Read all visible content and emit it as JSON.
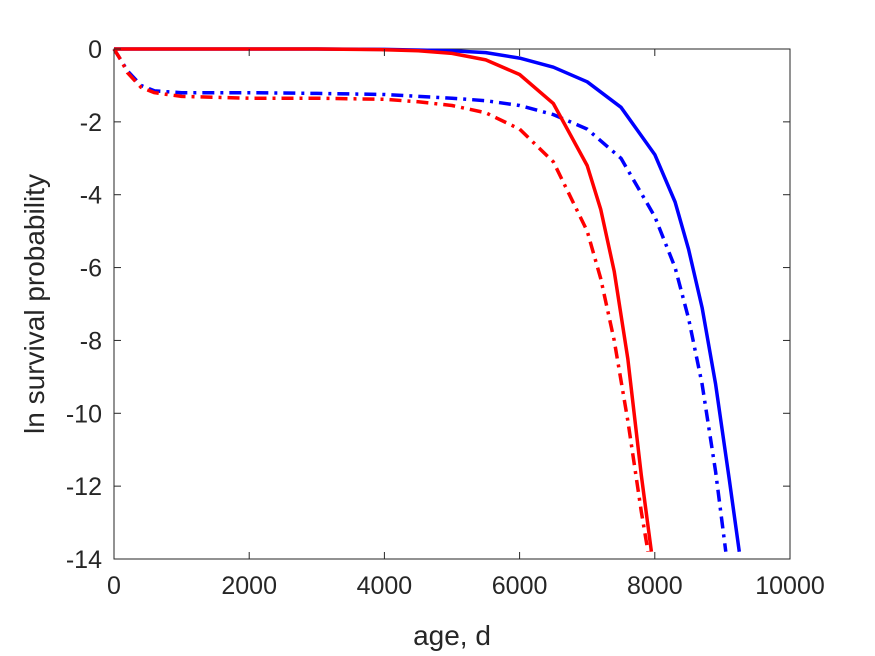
{
  "chart_data": {
    "type": "line",
    "title": "",
    "xlabel": "age, d",
    "ylabel": "ln survival probability",
    "xlim": [
      0,
      10000
    ],
    "ylim": [
      -14,
      0
    ],
    "xticks": [
      0,
      2000,
      4000,
      6000,
      8000,
      10000
    ],
    "yticks": [
      0,
      -2,
      -4,
      -6,
      -8,
      -10,
      -12,
      -14
    ],
    "xtick_labels": [
      "0",
      "2000",
      "4000",
      "6000",
      "8000",
      "10000"
    ],
    "ytick_labels": [
      "0",
      "-2",
      "-4",
      "-6",
      "-8",
      "-10",
      "-12",
      "-14"
    ],
    "grid": false,
    "legend": "none",
    "series": [
      {
        "color": "#0000ff",
        "style": "solid",
        "x": [
          0,
          1000,
          2000,
          3000,
          4000,
          5000,
          5500,
          6000,
          6500,
          7000,
          7500,
          8000,
          8300,
          8500,
          8700,
          8900,
          9100,
          9250
        ],
        "y": [
          0,
          0,
          0,
          0,
          -0.01,
          -0.05,
          -0.1,
          -0.25,
          -0.5,
          -0.9,
          -1.6,
          -2.9,
          -4.2,
          -5.5,
          -7.1,
          -9.2,
          -11.8,
          -13.8
        ]
      },
      {
        "color": "#0000ff",
        "style": "dashdot",
        "x": [
          0,
          100,
          200,
          400,
          600,
          1000,
          2000,
          3000,
          4000,
          5000,
          5500,
          6000,
          6500,
          7000,
          7500,
          8000,
          8300,
          8500,
          8700,
          8900,
          9050
        ],
        "y": [
          0,
          -0.3,
          -0.6,
          -1.0,
          -1.15,
          -1.2,
          -1.2,
          -1.22,
          -1.25,
          -1.35,
          -1.42,
          -1.55,
          -1.8,
          -2.2,
          -3.0,
          -4.6,
          -6.0,
          -7.4,
          -9.2,
          -11.6,
          -13.8
        ]
      },
      {
        "color": "#ff0000",
        "style": "solid",
        "x": [
          0,
          1000,
          2000,
          3000,
          4000,
          4500,
          5000,
          5500,
          6000,
          6500,
          7000,
          7200,
          7400,
          7600,
          7800,
          7950
        ],
        "y": [
          0,
          0,
          0,
          0,
          -0.02,
          -0.05,
          -0.12,
          -0.3,
          -0.7,
          -1.5,
          -3.2,
          -4.4,
          -6.1,
          -8.5,
          -11.7,
          -13.8
        ]
      },
      {
        "color": "#ff0000",
        "style": "dashdot",
        "x": [
          0,
          100,
          200,
          400,
          600,
          1000,
          2000,
          3000,
          4000,
          4500,
          5000,
          5500,
          6000,
          6500,
          7000,
          7200,
          7400,
          7600,
          7800,
          7900
        ],
        "y": [
          0,
          -0.3,
          -0.65,
          -1.05,
          -1.2,
          -1.3,
          -1.35,
          -1.35,
          -1.38,
          -1.45,
          -1.55,
          -1.75,
          -2.2,
          -3.1,
          -5.0,
          -6.3,
          -8.0,
          -10.2,
          -12.7,
          -13.8
        ]
      }
    ]
  }
}
